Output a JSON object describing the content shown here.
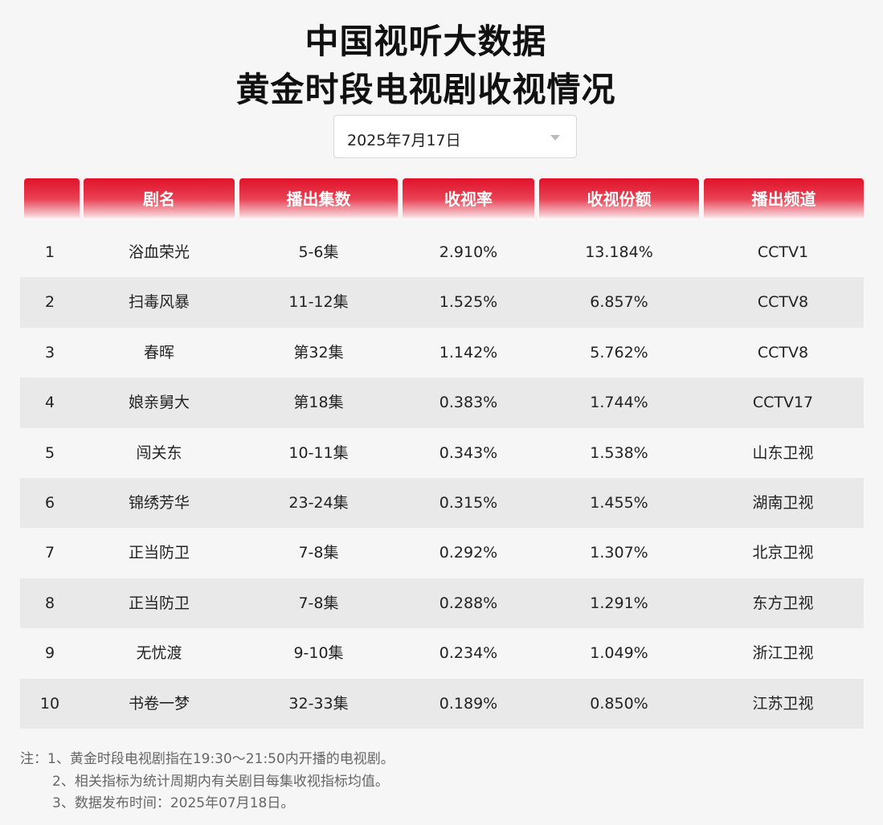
{
  "title": {
    "line1": "中国视听大数据",
    "line2": "黄金时段电视剧收视情况"
  },
  "date_selector": {
    "value": "2025年7月17日"
  },
  "table": {
    "headers": [
      "",
      "剧名",
      "播出集数",
      "收视率",
      "收视份额",
      "播出频道"
    ],
    "rows": [
      [
        "1",
        "浴血荣光",
        "5-6集",
        "2.910%",
        "13.184%",
        "CCTV1"
      ],
      [
        "2",
        "扫毒风暴",
        "11-12集",
        "1.525%",
        "6.857%",
        "CCTV8"
      ],
      [
        "3",
        "春晖",
        "第32集",
        "1.142%",
        "5.762%",
        "CCTV8"
      ],
      [
        "4",
        "娘亲舅大",
        "第18集",
        "0.383%",
        "1.744%",
        "CCTV17"
      ],
      [
        "5",
        "闯关东",
        "10-11集",
        "0.343%",
        "1.538%",
        "山东卫视"
      ],
      [
        "6",
        "锦绣芳华",
        "23-24集",
        "0.315%",
        "1.455%",
        "湖南卫视"
      ],
      [
        "7",
        "正当防卫",
        "7-8集",
        "0.292%",
        "1.307%",
        "北京卫视"
      ],
      [
        "8",
        "正当防卫",
        "7-8集",
        "0.288%",
        "1.291%",
        "东方卫视"
      ],
      [
        "9",
        "无忧渡",
        "9-10集",
        "0.234%",
        "1.049%",
        "浙江卫视"
      ],
      [
        "10",
        "书卷一梦",
        "32-33集",
        "0.189%",
        "0.850%",
        "江苏卫视"
      ]
    ]
  },
  "notes": [
    "注：1、黄金时段电视剧指在19:30～21:50内开播的电视剧。",
    "2、相关指标为统计周期内有关剧目每集收视指标均值。",
    "3、数据发布时间：2025年07月18日。"
  ],
  "colors": {
    "header_red": "#e0122a",
    "row_alt": "#e9e9e9",
    "background": "#f6f6f6"
  }
}
